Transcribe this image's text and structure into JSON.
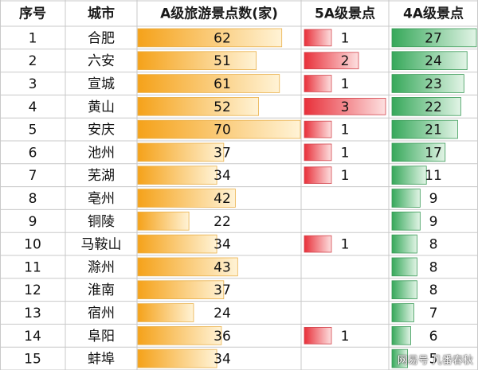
{
  "chart_data": {
    "type": "table",
    "headers": [
      "序号",
      "城市",
      "A级旅游景点数(家)",
      "5A级景点",
      "4A级景点"
    ],
    "rows": [
      {
        "no": "1",
        "city": "合肥",
        "a": 62,
        "a5": 1,
        "a4": 27
      },
      {
        "no": "2",
        "city": "六安",
        "a": 51,
        "a5": 2,
        "a4": 24
      },
      {
        "no": "3",
        "city": "宣城",
        "a": 61,
        "a5": 1,
        "a4": 23
      },
      {
        "no": "4",
        "city": "黄山",
        "a": 52,
        "a5": 3,
        "a4": 22
      },
      {
        "no": "5",
        "city": "安庆",
        "a": 70,
        "a5": 1,
        "a4": 21
      },
      {
        "no": "6",
        "city": "池州",
        "a": 37,
        "a5": 1,
        "a4": 17
      },
      {
        "no": "7",
        "city": "芜湖",
        "a": 34,
        "a5": 1,
        "a4": 11
      },
      {
        "no": "8",
        "city": "亳州",
        "a": 42,
        "a5": null,
        "a4": 9
      },
      {
        "no": "9",
        "city": "铜陵",
        "a": 22,
        "a5": null,
        "a4": 9
      },
      {
        "no": "10",
        "city": "马鞍山",
        "a": 34,
        "a5": 1,
        "a4": 8
      },
      {
        "no": "11",
        "city": "滁州",
        "a": 43,
        "a5": null,
        "a4": 8
      },
      {
        "no": "12",
        "city": "淮南",
        "a": 37,
        "a5": null,
        "a4": 8
      },
      {
        "no": "13",
        "city": "宿州",
        "a": 24,
        "a5": null,
        "a4": 7
      },
      {
        "no": "14",
        "city": "阜阳",
        "a": 36,
        "a5": 1,
        "a4": 6
      },
      {
        "no": "15",
        "city": "蚌埠",
        "a": 34,
        "a5": null,
        "a4": 5
      }
    ],
    "scale_max": {
      "a": 70,
      "a5": 3,
      "a4": 27
    },
    "colors": {
      "a": "#f5a623",
      "a5": "#e8303a",
      "a4": "#2e9e4f",
      "grid": "#c9c9c9"
    }
  },
  "watermark": "网易号 几番春秋"
}
